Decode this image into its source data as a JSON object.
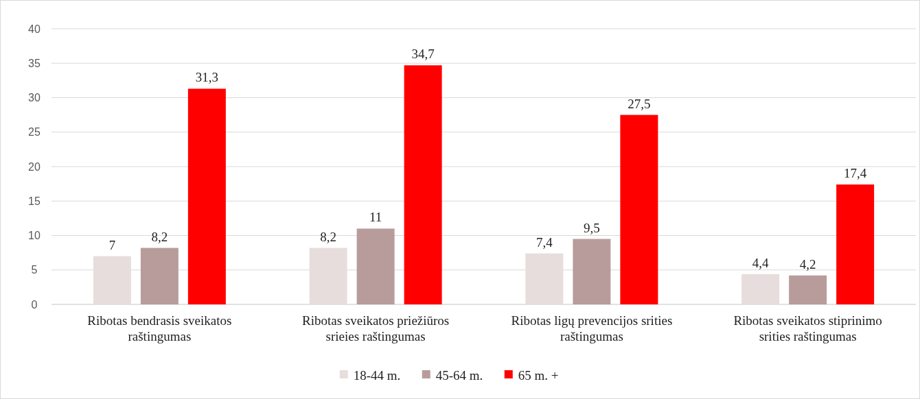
{
  "chart_data": {
    "type": "bar",
    "categories": [
      "Ribotas bendrasis sveikatos raštingumas",
      "Ribotas sveikatos priežiūros srieies raštingumas",
      "Ribotas ligų prevencijos srities raštingumas",
      "Ribotas sveikatos stiprinimo srities raštingumas"
    ],
    "series": [
      {
        "name": "18-44 m.",
        "color": "#e7dddc",
        "values": [
          7,
          8.2,
          7.4,
          4.4
        ],
        "value_labels": [
          "7",
          "8,2",
          "7,4",
          "4,4"
        ]
      },
      {
        "name": "45-64 m.",
        "color": "#b89c9b",
        "values": [
          8.2,
          11,
          9.5,
          4.2
        ],
        "value_labels": [
          "8,2",
          "11",
          "9,5",
          "4,2"
        ]
      },
      {
        "name": "65 m. +",
        "color": "#ff0000",
        "values": [
          31.3,
          34.7,
          27.5,
          17.4
        ],
        "value_labels": [
          "31,3",
          "34,7",
          "27,5",
          "17,4"
        ]
      }
    ],
    "ylim": [
      0,
      40
    ],
    "yticks": [
      0,
      5,
      10,
      15,
      20,
      25,
      30,
      35,
      40
    ],
    "grid": "y",
    "legend": "bottom"
  }
}
